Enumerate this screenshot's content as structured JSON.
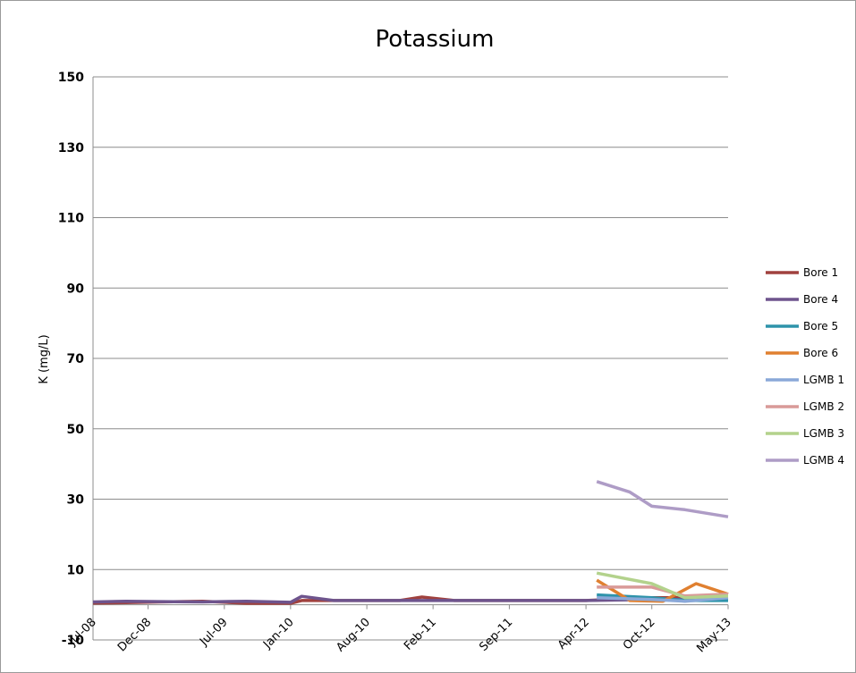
{
  "chart_data": {
    "type": "line",
    "title": "Potassium",
    "xlabel": "",
    "ylabel": "K (mg/L)",
    "ylim": [
      -10,
      150
    ],
    "yticks": [
      150,
      130,
      110,
      90,
      70,
      50,
      30,
      10,
      -10
    ],
    "ytick_labels": [
      "150",
      "130",
      "110",
      "90",
      "70",
      "50",
      "30",
      "10",
      "-10"
    ],
    "xlim": [
      "2008-07-01",
      "2013-05-01"
    ],
    "xtick_labels": [
      "Jul-08",
      "Dec-08",
      "Jul-09",
      "Jan-10",
      "Aug-10",
      "Feb-11",
      "Sep-11",
      "Apr-12",
      "Oct-12",
      "May-13"
    ],
    "xtick_dates": [
      "2008-07-01",
      "2008-12-01",
      "2009-07-01",
      "2010-01-01",
      "2010-08-01",
      "2011-02-01",
      "2011-09-01",
      "2012-04-01",
      "2012-10-01",
      "2013-05-01"
    ],
    "grid": "horizontal",
    "legend_position": "right",
    "series": [
      {
        "name": "Bore 1",
        "color": "#A0413E",
        "points": [
          [
            "2008-07-01",
            0.5
          ],
          [
            "2008-10-01",
            0.6
          ],
          [
            "2009-01-01",
            0.8
          ],
          [
            "2009-05-01",
            1.0
          ],
          [
            "2009-09-01",
            0.4
          ],
          [
            "2010-01-01",
            0.4
          ],
          [
            "2010-02-01",
            1.2
          ],
          [
            "2010-05-01",
            1.2
          ],
          [
            "2010-08-01",
            1.2
          ],
          [
            "2010-11-01",
            1.2
          ],
          [
            "2011-01-01",
            2.2
          ],
          [
            "2011-04-01",
            1.2
          ],
          [
            "2011-09-01",
            1.2
          ],
          [
            "2012-04-01",
            1.2
          ],
          [
            "2012-10-01",
            2.0
          ],
          [
            "2013-05-01",
            2.0
          ]
        ]
      },
      {
        "name": "Bore 4",
        "color": "#6E548D",
        "points": [
          [
            "2008-07-01",
            0.8
          ],
          [
            "2008-10-01",
            1.0
          ],
          [
            "2009-01-01",
            0.9
          ],
          [
            "2009-05-01",
            0.8
          ],
          [
            "2009-09-01",
            1.0
          ],
          [
            "2010-01-01",
            0.7
          ],
          [
            "2010-02-01",
            2.4
          ],
          [
            "2010-05-01",
            1.2
          ],
          [
            "2010-08-01",
            1.2
          ],
          [
            "2010-11-01",
            1.2
          ],
          [
            "2011-01-01",
            1.2
          ],
          [
            "2011-04-01",
            1.2
          ],
          [
            "2011-09-01",
            1.2
          ],
          [
            "2012-04-01",
            1.2
          ],
          [
            "2012-10-01",
            1.5
          ],
          [
            "2013-05-01",
            1.5
          ]
        ]
      },
      {
        "name": "Bore 5",
        "color": "#2E93AA",
        "points": [
          [
            "2012-05-01",
            2.8
          ],
          [
            "2012-10-01",
            2.0
          ],
          [
            "2013-01-01",
            1.2
          ],
          [
            "2013-05-01",
            1.2
          ]
        ]
      },
      {
        "name": "Bore 6",
        "color": "#E08030",
        "points": [
          [
            "2012-05-01",
            7.0
          ],
          [
            "2012-08-01",
            1.2
          ],
          [
            "2012-11-01",
            1.0
          ],
          [
            "2013-02-01",
            6.0
          ],
          [
            "2013-05-01",
            3.0
          ]
        ]
      },
      {
        "name": "LGMB 1",
        "color": "#8AA8D8",
        "points": [
          [
            "2012-05-01",
            2.0
          ],
          [
            "2012-10-01",
            1.5
          ],
          [
            "2013-01-01",
            1.0
          ],
          [
            "2013-05-01",
            2.0
          ]
        ]
      },
      {
        "name": "LGMB 2",
        "color": "#D99A98",
        "points": [
          [
            "2012-05-01",
            5.0
          ],
          [
            "2012-10-01",
            5.0
          ],
          [
            "2013-01-01",
            2.5
          ],
          [
            "2013-05-01",
            3.0
          ]
        ]
      },
      {
        "name": "LGMB 3",
        "color": "#B3D28C",
        "points": [
          [
            "2012-05-01",
            9.0
          ],
          [
            "2012-10-01",
            6.0
          ],
          [
            "2013-01-01",
            2.0
          ],
          [
            "2013-05-01",
            2.5
          ]
        ]
      },
      {
        "name": "LGMB 4",
        "color": "#AE9CC6",
        "points": [
          [
            "2012-05-01",
            35.0
          ],
          [
            "2012-08-01",
            32.0
          ],
          [
            "2012-10-01",
            28.0
          ],
          [
            "2013-01-01",
            27.0
          ],
          [
            "2013-05-01",
            25.0
          ]
        ]
      }
    ]
  }
}
